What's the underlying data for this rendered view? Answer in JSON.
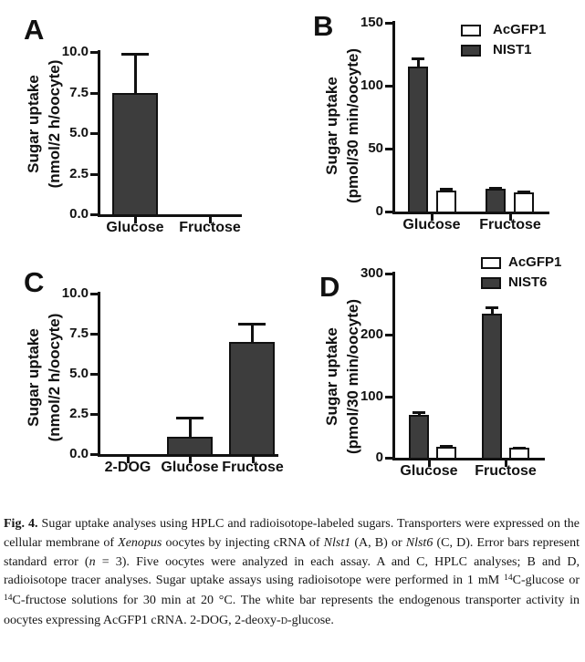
{
  "colors": {
    "axis": "#111111",
    "dark_bar": "#3d3d3d",
    "white_bar": "#ffffff"
  },
  "figure": {
    "caption_segments": [
      {
        "t": "Fig. 4.",
        "b": true
      },
      {
        "t": " Sugar uptake analyses using HPLC and radioisotope-labeled sugars. Transporters were expressed on the cellular membrane of "
      },
      {
        "t": "Xenopus",
        "i": true
      },
      {
        "t": " oocytes by injecting cRNA of "
      },
      {
        "t": "Nlst1",
        "i": true
      },
      {
        "t": " (A, B) or "
      },
      {
        "t": "Nlst6",
        "i": true
      },
      {
        "t": " (C, D). Error bars represent standard error ("
      },
      {
        "t": "n",
        "i": true
      },
      {
        "t": " = 3). Five oocytes were analyzed in each assay. A and C, HPLC analyses; B and D, radioisotope tracer analyses. Sugar uptake assays using radioisotope were performed in 1 mM "
      },
      {
        "t": "14",
        "sup": true
      },
      {
        "t": "C-glucose or "
      },
      {
        "t": "14",
        "sup": true
      },
      {
        "t": "C-fructose solutions for 30 min at 20 °C. The white bar represents the endogenous transporter activity in oocytes expressing AcGFP1 cRNA. 2-DOG, 2-deoxy-"
      },
      {
        "t": "d",
        "sc": true
      },
      {
        "t": "-glucose."
      }
    ]
  },
  "chart_data": [
    {
      "type": "bar",
      "panel_label": "A",
      "ylabel_lines": [
        "Sugar uptake",
        "(nmol/2 h/oocyte)"
      ],
      "ylim": [
        0,
        10
      ],
      "yticks": [
        {
          "v": 0,
          "label": "0.0"
        },
        {
          "v": 2.5,
          "label": "2.5"
        },
        {
          "v": 5,
          "label": "5.0"
        },
        {
          "v": 7.5,
          "label": "7.5"
        },
        {
          "v": 10,
          "label": "10.0"
        }
      ],
      "categories": [
        "Glucose",
        "Fructose"
      ],
      "series": [
        {
          "name": "",
          "color": "#3d3d3d",
          "values": [
            7.5,
            0
          ],
          "errors": [
            2.4,
            0
          ]
        }
      ],
      "legend": null
    },
    {
      "type": "bar",
      "panel_label": "B",
      "ylabel_lines": [
        "Sugar uptake",
        "(pmol/30 min/oocyte)"
      ],
      "ylim": [
        0,
        150
      ],
      "yticks": [
        {
          "v": 0,
          "label": "0"
        },
        {
          "v": 50,
          "label": "50"
        },
        {
          "v": 100,
          "label": "100"
        },
        {
          "v": 150,
          "label": "150"
        }
      ],
      "categories": [
        "Glucose",
        "Fructose"
      ],
      "series": [
        {
          "name": "NIST1",
          "color": "#3d3d3d",
          "values": [
            115,
            18
          ],
          "errors": [
            7,
            1
          ]
        },
        {
          "name": "AcGFP1",
          "color": "#ffffff",
          "values": [
            17,
            15
          ],
          "errors": [
            1,
            1
          ]
        }
      ],
      "legend": [
        {
          "label": "AcGFP1",
          "color": "#ffffff"
        },
        {
          "label": "NIST1",
          "color": "#3d3d3d"
        }
      ]
    },
    {
      "type": "bar",
      "panel_label": "C",
      "ylabel_lines": [
        "Sugar uptake",
        "(nmol/2 h/oocyte)"
      ],
      "ylim": [
        0,
        10
      ],
      "yticks": [
        {
          "v": 0,
          "label": "0.0"
        },
        {
          "v": 2.5,
          "label": "2.5"
        },
        {
          "v": 5,
          "label": "5.0"
        },
        {
          "v": 7.5,
          "label": "7.5"
        },
        {
          "v": 10,
          "label": "10.0"
        }
      ],
      "categories": [
        "2-DOG",
        "Glucose",
        "Fructose"
      ],
      "series": [
        {
          "name": "",
          "color": "#3d3d3d",
          "values": [
            0,
            1.1,
            7.0
          ],
          "errors": [
            0,
            1.2,
            1.1
          ]
        }
      ],
      "legend": null
    },
    {
      "type": "bar",
      "panel_label": "D",
      "ylabel_lines": [
        "Sugar uptake",
        "(pmol/30 min/oocyte)"
      ],
      "ylim": [
        0,
        300
      ],
      "yticks": [
        {
          "v": 0,
          "label": "0"
        },
        {
          "v": 100,
          "label": "100"
        },
        {
          "v": 200,
          "label": "200"
        },
        {
          "v": 300,
          "label": "300"
        }
      ],
      "categories": [
        "Glucose",
        "Fructose"
      ],
      "series": [
        {
          "name": "NIST6",
          "color": "#3d3d3d",
          "values": [
            70,
            235
          ],
          "errors": [
            5,
            10
          ]
        },
        {
          "name": "AcGFP1",
          "color": "#ffffff",
          "values": [
            18,
            16
          ],
          "errors": [
            1,
            1
          ]
        }
      ],
      "legend": [
        {
          "label": "AcGFP1",
          "color": "#ffffff"
        },
        {
          "label": "NIST6",
          "color": "#3d3d3d"
        }
      ]
    }
  ]
}
